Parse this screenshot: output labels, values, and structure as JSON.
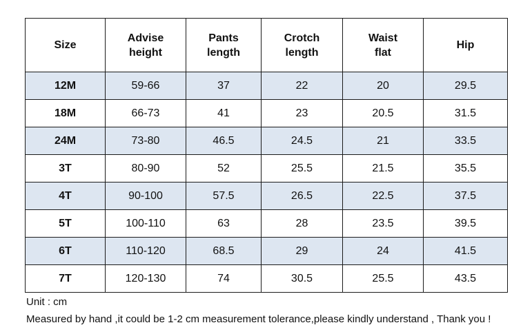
{
  "table": {
    "headers": [
      [
        "Size"
      ],
      [
        "Advise",
        "height"
      ],
      [
        "Pants",
        "length"
      ],
      [
        "Crotch",
        "length"
      ],
      [
        "Waist",
        "flat"
      ],
      [
        "Hip"
      ]
    ],
    "rows": [
      [
        "12M",
        "59-66",
        "37",
        "22",
        "20",
        "29.5"
      ],
      [
        "18M",
        "66-73",
        "41",
        "23",
        "20.5",
        "31.5"
      ],
      [
        "24M",
        "73-80",
        "46.5",
        "24.5",
        "21",
        "33.5"
      ],
      [
        "3T",
        "80-90",
        "52",
        "25.5",
        "21.5",
        "35.5"
      ],
      [
        "4T",
        "90-100",
        "57.5",
        "26.5",
        "22.5",
        "37.5"
      ],
      [
        "5T",
        "100-110",
        "63",
        "28",
        "23.5",
        "39.5"
      ],
      [
        "6T",
        "110-120",
        "68.5",
        "29",
        "24",
        "41.5"
      ],
      [
        "7T",
        "120-130",
        "74",
        "30.5",
        "25.5",
        "43.5"
      ]
    ],
    "shaded_row_color": "#dde6f1",
    "border_color": "#1a1a1a"
  },
  "notes": {
    "unit": "Unit : cm",
    "measurement": "Measured by hand ,it could be 1-2 cm measurement tolerance,please kindly understand , Thank you !"
  }
}
